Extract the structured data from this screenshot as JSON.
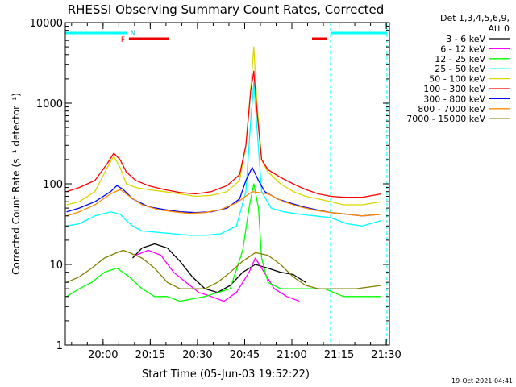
{
  "chart_data": {
    "type": "line",
    "title": "RHESSI Observing Summary Count Rates, Corrected",
    "xlabel": "Start Time (05-Jun-03 19:52:22)",
    "ylabel": "Corrected Count Rate (s⁻¹ detector⁻¹)",
    "yscale": "log",
    "ylim": [
      1,
      10000
    ],
    "xlim_minutes": [
      -4.4,
      98.6
    ],
    "xticks": [
      {
        "label": "20:00",
        "minutes": 7.6
      },
      {
        "label": "20:15",
        "minutes": 22.6
      },
      {
        "label": "20:30",
        "minutes": 37.6
      },
      {
        "label": "20:45",
        "minutes": 52.6
      },
      {
        "label": "21:00",
        "minutes": 67.6
      },
      {
        "label": "21:15",
        "minutes": 82.6
      },
      {
        "label": "21:30",
        "minutes": 97.6
      }
    ],
    "yticks": [
      {
        "label": "1",
        "value": 1
      },
      {
        "label": "10",
        "value": 10
      },
      {
        "label": "100",
        "value": 100
      },
      {
        "label": "1000",
        "value": 1000
      },
      {
        "label": "10000",
        "value": 10000
      }
    ],
    "legend_header": [
      "Det 1,3,4,5,6,9,",
      "Att 0"
    ],
    "legend_position": "top-right",
    "series": [
      {
        "name": "3 - 6 keV",
        "color": "#000000",
        "x": [
          17,
          20,
          24,
          28,
          32,
          36,
          40,
          44,
          48,
          52,
          56,
          60,
          64,
          68,
          72
        ],
        "y": [
          12,
          16,
          18,
          16,
          11,
          7,
          5,
          4.5,
          5.5,
          8,
          10,
          9,
          8,
          7.5,
          6
        ]
      },
      {
        "name": "6 - 12 keV",
        "color": "#ff00ff",
        "x": [
          18,
          22,
          26,
          30,
          34,
          38,
          42,
          46,
          50,
          54,
          56,
          58,
          62,
          66,
          70
        ],
        "y": [
          13,
          15,
          13,
          8,
          6,
          4.5,
          4,
          3.5,
          4.5,
          8,
          12,
          9,
          5,
          4,
          3.5
        ]
      },
      {
        "name": "12 - 25 keV",
        "color": "#00ff00",
        "x": [
          -4,
          0,
          4,
          8,
          12,
          16,
          20,
          24,
          28,
          32,
          40,
          48,
          52,
          54,
          55.5,
          57,
          58,
          60,
          64,
          68,
          72,
          78,
          84,
          90,
          96
        ],
        "y": [
          4,
          5,
          6,
          8,
          9,
          7,
          5,
          4,
          4,
          3.5,
          4,
          5,
          15,
          50,
          100,
          50,
          12,
          6,
          5,
          5,
          5,
          5,
          4,
          4,
          4
        ]
      },
      {
        "name": "25 - 50 keV",
        "color": "#00ffff",
        "x": [
          -4,
          0,
          5,
          10,
          13,
          15,
          17,
          20,
          25,
          30,
          35,
          40,
          45,
          50,
          53,
          54.5,
          55.5,
          56.5,
          58,
          61,
          65,
          70,
          75,
          80,
          85,
          90,
          96
        ],
        "y": [
          30,
          32,
          40,
          45,
          42,
          35,
          30,
          26,
          25,
          24,
          23,
          23,
          24,
          30,
          80,
          600,
          1800,
          500,
          80,
          50,
          45,
          42,
          40,
          38,
          32,
          30,
          35
        ]
      },
      {
        "name": "50 - 100 keV",
        "color": "#d8d800",
        "x": [
          -4,
          0,
          5,
          9,
          11,
          13,
          15,
          18,
          22,
          27,
          32,
          37,
          42,
          47,
          51,
          53,
          54.5,
          55.5,
          56.5,
          58,
          60,
          64,
          68,
          72,
          76,
          80,
          84,
          90,
          96
        ],
        "y": [
          55,
          60,
          80,
          160,
          220,
          160,
          100,
          90,
          85,
          80,
          75,
          70,
          72,
          80,
          110,
          300,
          1500,
          5000,
          1000,
          200,
          140,
          100,
          80,
          70,
          65,
          60,
          55,
          55,
          60
        ]
      },
      {
        "name": "100 - 300 keV",
        "color": "#ff0000",
        "x": [
          -4,
          0,
          5,
          9,
          11,
          13,
          15,
          18,
          22,
          27,
          32,
          37,
          42,
          47,
          51,
          53,
          54.5,
          55.5,
          56.5,
          58,
          60,
          64,
          68,
          72,
          76,
          80,
          84,
          90,
          96
        ],
        "y": [
          80,
          90,
          110,
          180,
          240,
          200,
          140,
          110,
          95,
          85,
          78,
          75,
          80,
          95,
          130,
          300,
          1400,
          2500,
          800,
          200,
          150,
          120,
          100,
          85,
          75,
          70,
          68,
          68,
          75
        ]
      },
      {
        "name": "300 - 800 keV",
        "color": "#0000ff",
        "x": [
          -4,
          0,
          5,
          10,
          12,
          14,
          17,
          22,
          27,
          32,
          37,
          42,
          47,
          51,
          53,
          55,
          57,
          59,
          63,
          67,
          71,
          75,
          80,
          85,
          90,
          96
        ],
        "y": [
          45,
          50,
          60,
          80,
          95,
          85,
          65,
          52,
          48,
          45,
          44,
          45,
          50,
          65,
          110,
          160,
          110,
          80,
          65,
          58,
          52,
          48,
          44,
          42,
          40,
          42
        ]
      },
      {
        "name": "800 - 7000 keV",
        "color": "#ff8c00",
        "x": [
          -4,
          0,
          5,
          10,
          13,
          16,
          20,
          25,
          30,
          35,
          40,
          45,
          50,
          55,
          60,
          65,
          70,
          75,
          80,
          85,
          90,
          96
        ],
        "y": [
          40,
          45,
          55,
          75,
          85,
          70,
          55,
          48,
          45,
          43,
          44,
          48,
          58,
          80,
          75,
          60,
          52,
          47,
          44,
          42,
          40,
          42
        ]
      },
      {
        "name": "7000 - 15000 keV",
        "color": "#808000",
        "x": [
          -4,
          0,
          4,
          8,
          12,
          14,
          16,
          20,
          24,
          28,
          32,
          36,
          40,
          44,
          48,
          52,
          56,
          60,
          64,
          68,
          72,
          76,
          82,
          88,
          96
        ],
        "y": [
          6,
          7,
          9,
          12,
          14,
          15,
          14,
          12,
          9,
          6,
          5,
          5,
          5,
          6,
          8,
          11,
          14,
          13,
          10,
          7,
          5.5,
          5,
          5,
          5,
          5.5
        ]
      }
    ],
    "annotations": {
      "night_label": "N",
      "flare_label": "F",
      "night_bars": [
        [
          -4.4,
          15.2
        ],
        [
          79.9,
          97.8
        ]
      ],
      "flare_bars": [
        [
          15.8,
          28.5
        ],
        [
          74.0,
          78.8
        ]
      ],
      "boundary_lines": [
        15.2,
        79.9,
        97.8
      ]
    },
    "timestamp": "19-Oct-2021 04:41"
  }
}
